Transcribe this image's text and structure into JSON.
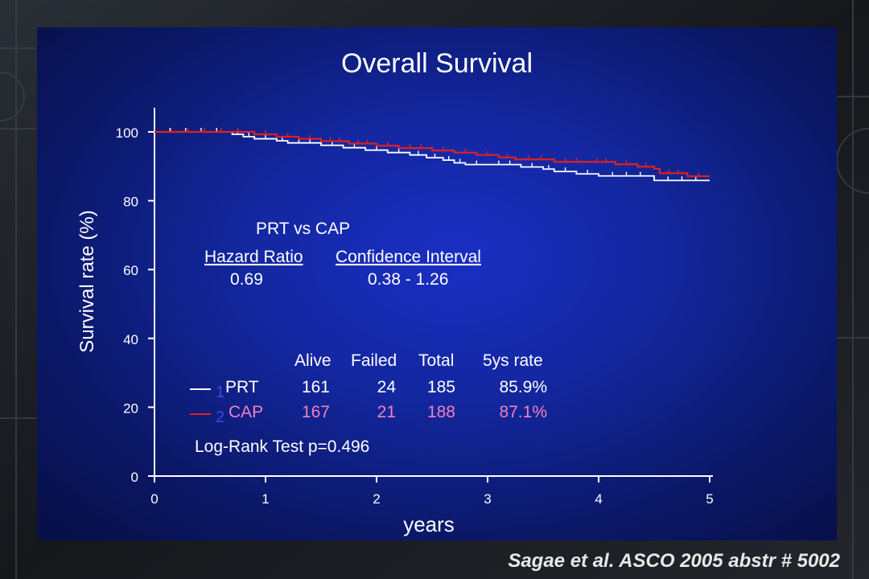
{
  "chart_data": {
    "type": "line",
    "title": "Overall Survival",
    "xlabel": "years",
    "ylabel": "Survival rate (%)",
    "xlim": [
      0,
      5
    ],
    "ylim": [
      0,
      100
    ],
    "x_ticks": [
      "0",
      "1",
      "2",
      "3",
      "4",
      "5"
    ],
    "y_ticks": [
      "0",
      "20",
      "40",
      "60",
      "80",
      "100"
    ],
    "grid": false,
    "series": [
      {
        "name": "PRT",
        "color": "#ffffff",
        "x": [
          0,
          0.7,
          0.8,
          0.9,
          1.1,
          1.2,
          1.5,
          1.7,
          1.9,
          2.1,
          2.3,
          2.45,
          2.6,
          2.7,
          2.8,
          3.0,
          3.3,
          3.5,
          3.6,
          3.8,
          4.0,
          4.5,
          5.0
        ],
        "values": [
          100,
          99.3,
          98.6,
          98.0,
          97.4,
          96.8,
          96.1,
          95.4,
          94.7,
          94.0,
          93.3,
          92.5,
          91.8,
          91.0,
          90.5,
          90.5,
          89.8,
          89.2,
          88.5,
          87.8,
          87.2,
          85.9,
          85.9
        ]
      },
      {
        "name": "CAP",
        "color": "#e02020",
        "x": [
          0,
          0.9,
          1.1,
          1.3,
          1.5,
          1.75,
          2.0,
          2.2,
          2.5,
          2.7,
          2.9,
          3.1,
          3.25,
          3.6,
          3.9,
          4.15,
          4.35,
          4.5,
          4.55,
          4.8,
          5.0
        ],
        "values": [
          100,
          99.3,
          98.6,
          98.0,
          97.3,
          96.6,
          96.0,
          95.3,
          94.6,
          94.0,
          93.3,
          92.6,
          92.0,
          91.3,
          91.3,
          90.6,
          89.9,
          89.3,
          88.0,
          87.1,
          87.1
        ]
      }
    ],
    "annotations": {
      "comparison_title": "PRT vs CAP",
      "hazard_ratio_label": "Hazard Ratio",
      "hazard_ratio_value": "0.69",
      "ci_label": "Confidence Interval",
      "ci_value": "0.38 - 1.26",
      "table_headers": [
        "Alive",
        "Failed",
        "Total",
        "5ys rate"
      ],
      "table_rows": [
        {
          "index": "1",
          "name": "PRT",
          "alive": "161",
          "failed": "24",
          "total": "185",
          "rate": "85.9%",
          "color": "#ffffff"
        },
        {
          "index": "2",
          "name": "CAP",
          "alive": "167",
          "failed": "21",
          "total": "188",
          "rate": "87.1%",
          "color": "#f080c0"
        }
      ],
      "logrank": "Log-Rank Test p=0.496"
    }
  },
  "citation": "Sagae et al. ASCO 2005 abstr # 5002"
}
